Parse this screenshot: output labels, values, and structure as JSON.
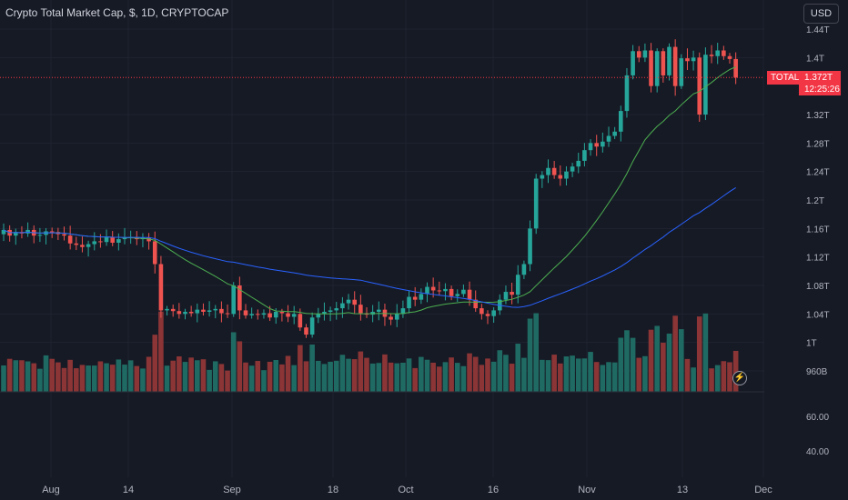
{
  "header": {
    "title": "Crypto Total Market Cap, $, 1D, CRYPTOCAP",
    "currency_button": "USD"
  },
  "last_price": {
    "symbol": "TOTAL",
    "value": "1.372T",
    "countdown": "12:25:26"
  },
  "flash_icon": "lightning-icon",
  "colors": {
    "up": "#26a69a",
    "down": "#ef5350",
    "ma_short": "#4caf50",
    "ma_long": "#2962ff",
    "price_line": "#f23645",
    "background": "#161a25"
  },
  "chart_data": {
    "type": "candlestick",
    "y_axis": {
      "ticks": [
        "1.44T",
        "1.4T",
        "1.32T",
        "1.28T",
        "1.24T",
        "1.2T",
        "1.16T",
        "1.12T",
        "1.08T",
        "1.04T",
        "1T",
        "960B"
      ],
      "tick_values": [
        1.44,
        1.4,
        1.32,
        1.28,
        1.24,
        1.2,
        1.16,
        1.12,
        1.08,
        1.04,
        1.0,
        0.96
      ]
    },
    "lower_axis": {
      "ticks": [
        "60.00",
        "40.00"
      ]
    },
    "x_axis": {
      "ticks": [
        "Aug",
        "14",
        "Sep",
        "18",
        "Oct",
        "16",
        "Nov",
        "13",
        "Dec"
      ]
    },
    "candles_close": [
      1.158,
      1.15,
      1.155,
      1.153,
      1.158,
      1.15,
      1.151,
      1.156,
      1.155,
      1.152,
      1.15,
      1.139,
      1.137,
      1.134,
      1.138,
      1.142,
      1.141,
      1.148,
      1.14,
      1.145,
      1.147,
      1.148,
      1.145,
      1.147,
      1.142,
      1.11,
      1.045,
      1.047,
      1.044,
      1.04,
      1.043,
      1.041,
      1.046,
      1.043,
      1.045,
      1.047,
      1.041,
      1.04,
      1.08,
      1.045,
      1.038,
      1.04,
      1.039,
      1.041,
      1.035,
      1.043,
      1.041,
      1.036,
      1.04,
      1.021,
      1.011,
      1.035,
      1.04,
      1.043,
      1.045,
      1.048,
      1.055,
      1.06,
      1.053,
      1.041,
      1.039,
      1.043,
      1.046,
      1.036,
      1.032,
      1.04,
      1.048,
      1.064,
      1.06,
      1.068,
      1.078,
      1.073,
      1.072,
      1.075,
      1.065,
      1.068,
      1.074,
      1.06,
      1.048,
      1.04,
      1.037,
      1.045,
      1.06,
      1.071,
      1.067,
      1.095,
      1.11,
      1.16,
      1.23,
      1.235,
      1.245,
      1.235,
      1.23,
      1.24,
      1.247,
      1.255,
      1.27,
      1.28,
      1.275,
      1.282,
      1.29,
      1.296,
      1.325,
      1.375,
      1.409,
      1.4,
      1.41,
      1.36,
      1.409,
      1.375,
      1.415,
      1.36,
      1.399,
      1.395,
      1.4,
      1.32,
      1.404,
      1.402,
      1.41,
      1.402,
      1.398,
      1.372
    ],
    "volume_last_bar": 0.5,
    "moving_averages": [
      "short",
      "long"
    ]
  }
}
